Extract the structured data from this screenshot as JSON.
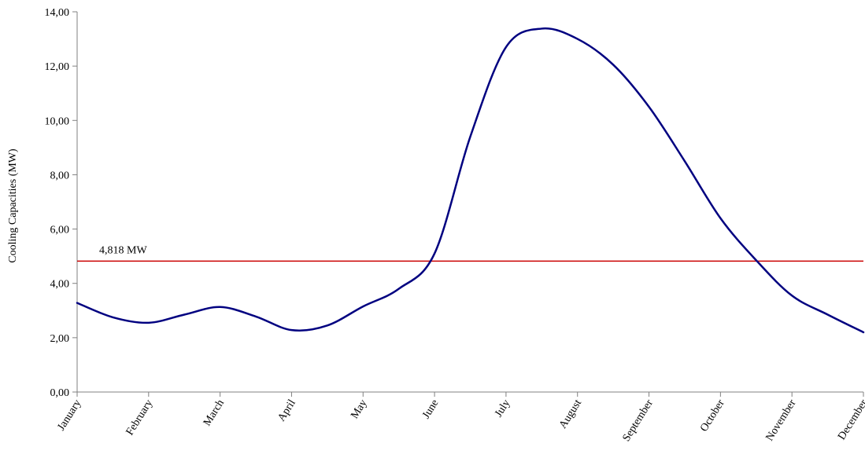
{
  "chart_data": {
    "type": "line",
    "title": "",
    "xlabel": "",
    "ylabel": "Cooling Capacities (MW)",
    "categories": [
      "January",
      "February",
      "March",
      "April",
      "May",
      "June",
      "July",
      "August",
      "September",
      "October",
      "November",
      "December"
    ],
    "y_ticks": [
      "0,00",
      "2,00",
      "4,00",
      "6,00",
      "8,00",
      "10,00",
      "12,00",
      "14,00"
    ],
    "ylim": [
      0,
      14
    ],
    "grid": false,
    "legend": "none",
    "series": [
      {
        "color": "#000080",
        "points": [
          [
            0,
            3.28
          ],
          [
            0.5,
            2.75
          ],
          [
            1,
            2.55
          ],
          [
            1.5,
            2.85
          ],
          [
            2,
            3.13
          ],
          [
            2.5,
            2.78
          ],
          [
            3,
            2.28
          ],
          [
            3.5,
            2.45
          ],
          [
            4,
            3.15
          ],
          [
            4.5,
            3.8
          ],
          [
            5,
            5.1
          ],
          [
            5.5,
            9.4
          ],
          [
            6,
            12.7
          ],
          [
            6.5,
            13.38
          ],
          [
            7,
            13.0
          ],
          [
            7.5,
            12.05
          ],
          [
            8,
            10.5
          ],
          [
            8.5,
            8.5
          ],
          [
            9,
            6.4
          ],
          [
            9.5,
            4.85
          ],
          [
            10,
            3.55
          ],
          [
            10.5,
            2.85
          ],
          [
            11,
            2.2
          ]
        ]
      }
    ],
    "reference_line": {
      "value": 4.818,
      "label": "4,818 MW",
      "color": "#cc0000"
    }
  }
}
